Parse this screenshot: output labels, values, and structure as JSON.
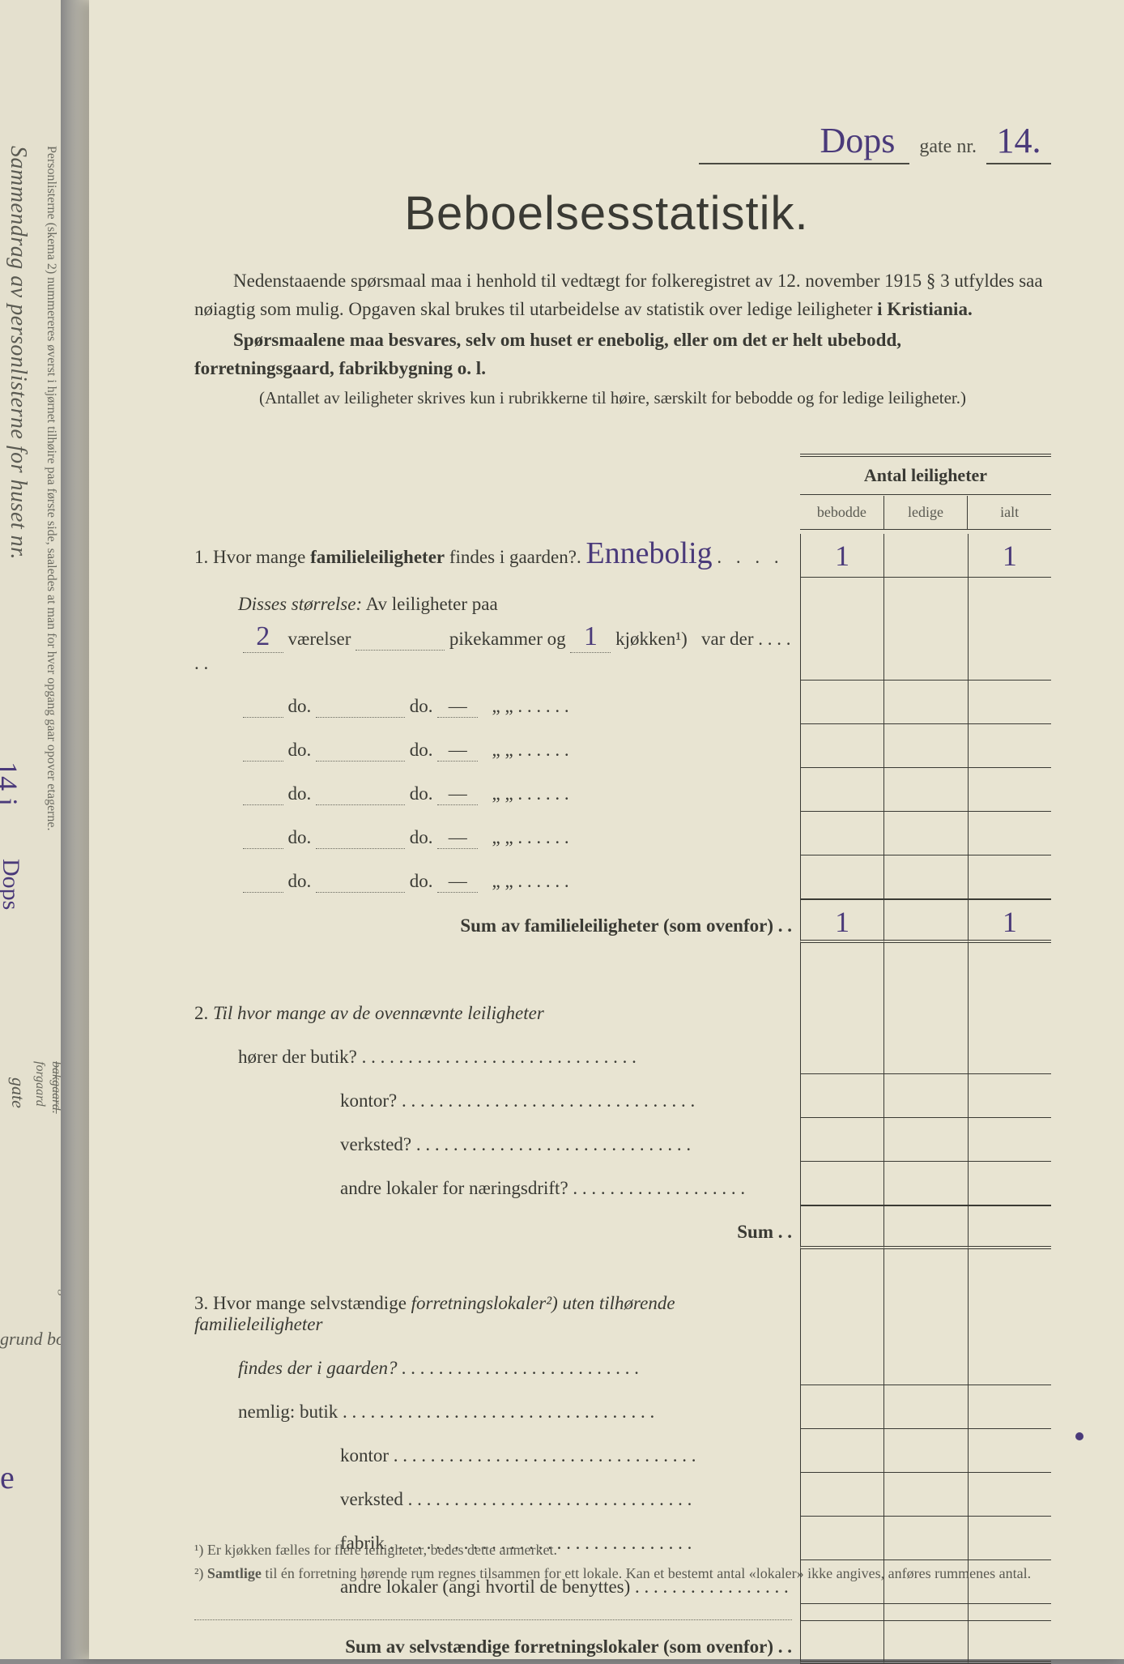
{
  "sidebar": {
    "vertical_title": "Sammendrag av personlisterne for huset nr.",
    "vertical_sub": "Personlisterne (skema 2) nummereres øverst i hjørnet tilhøire paa første side, saaledes at man for hver opgang gaar opover etagerne.",
    "hw_nr": "14 i",
    "hw_street": "Dops",
    "gate": "gate",
    "forgaard": "forgaard",
    "bakgaard": "bakgaard.",
    "listerne": "Listerne sammentlinges",
    "grund": "grund bor",
    "hw_bottom": "ue"
  },
  "header": {
    "street": "Dops",
    "gate_label": "gate nr.",
    "nr": "14."
  },
  "title": "Beboelsesstatistik.",
  "intro": {
    "p1a": "Nedenstaaende spørsmaal maa i henhold til vedtægt for folkeregistret av 12. november 1915 § 3 utfyldes saa nøiagtig som mulig. Opgaven skal brukes til utarbeidelse av statistik over ledige leiligheter ",
    "p1b": "i Kristiania.",
    "p2": "Spørsmaalene maa besvares, selv om huset er enebolig, eller om det er helt ubebodd, forretningsgaard, fabrikbygning o. l.",
    "note": "(Antallet av leiligheter skrives kun i rubrikkerne til høire, særskilt for bebodde og for ledige leiligheter.)"
  },
  "table": {
    "header": "Antal leiligheter",
    "cols": {
      "a": "bebodde",
      "b": "ledige",
      "c": "ialt"
    },
    "q1": {
      "num": "1.",
      "text_a": "Hvor mange ",
      "text_b": "familieleiligheter",
      "text_c": " findes i gaarden?. ",
      "hw": "Ennebolig",
      "dots": ". . . .",
      "val_a": "1",
      "val_c": "1"
    },
    "q1_size": {
      "label": "Disses størrelse:",
      "sub": " Av leiligheter paa"
    },
    "size_rows": [
      {
        "v": "2",
        "p": "",
        "k": "1",
        "tail": "var der . . . . . ."
      },
      {
        "v": "",
        "p": "",
        "k": "—",
        "tail": "„    „  . . . . . ."
      },
      {
        "v": "",
        "p": "",
        "k": "—",
        "tail": "„    „  . . . . . ."
      },
      {
        "v": "",
        "p": "",
        "k": "—",
        "tail": "„    „  . . . . . ."
      },
      {
        "v": "",
        "p": "",
        "k": "—",
        "tail": "„    „  . . . . . ."
      },
      {
        "v": "",
        "p": "",
        "k": "—",
        "tail": "„    „  . . . . . ."
      }
    ],
    "size_labels": {
      "vaer": "værelser",
      "pike": "pikekammer og",
      "kjok": "kjøkken¹)",
      "do": "do."
    },
    "sum1": {
      "text": "Sum av familieleiligheter (som ovenfor) . .",
      "val_a": "1",
      "val_c": "1"
    },
    "q2": {
      "num": "2.",
      "text": "Til hvor mange av de ovennævnte leiligheter",
      "rows": [
        "hører der butik? . . . . . . . . . . . . . . . . . . . . . . . . . . . . . .",
        "kontor? . . . . . . . . . . . . . . . . . . . . . . . . . . . . . . . .",
        "verksted? . . . . . . . . . . . . . . . . . . . . . . . . . . . . . .",
        "andre lokaler for næringsdrift? . . . . . . . . . . . . . . . . . . ."
      ],
      "sum": "Sum . ."
    },
    "q3": {
      "num": "3.",
      "text_a": "Hvor mange selvstændige ",
      "text_b": "forretningslokaler",
      "text_c": "²) uten tilhørende familieleiligheter",
      "text_d": "findes der i gaarden? . . . . . . . . . . . . . . . . . . . . . . . . . .",
      "nemlig": "nemlig:",
      "rows": [
        "butik . . . . . . . . . . . . . . . . . . . . . . . . . . . . . . . . . .",
        "kontor . . . . . . . . . . . . . . . . . . . . . . . . . . . . . . . . .",
        "verksted . . . . . . . . . . . . . . . . . . . . . . . . . . . . . . .",
        "fabrik . . . . . . . . . . . . . . . . . . . . . . . . . . . . . . . . .",
        "andre lokaler (angi hvortil de benyttes) . . . . . . . . . . . . . . . . ."
      ],
      "sum": "Sum av selvstændige forretningslokaler (som ovenfor) . ."
    }
  },
  "footnotes": {
    "f1": "¹) Er kjøkken fælles for flere leiligheter, bedes dette anmerket.",
    "f2a": "²) ",
    "f2b": "Samtlige",
    "f2c": " til én forretning hørende rum regnes tilsammen for ett lokale.  Kan et bestemt antal «lokaler» ikke angives, anføres rummenes antal."
  }
}
